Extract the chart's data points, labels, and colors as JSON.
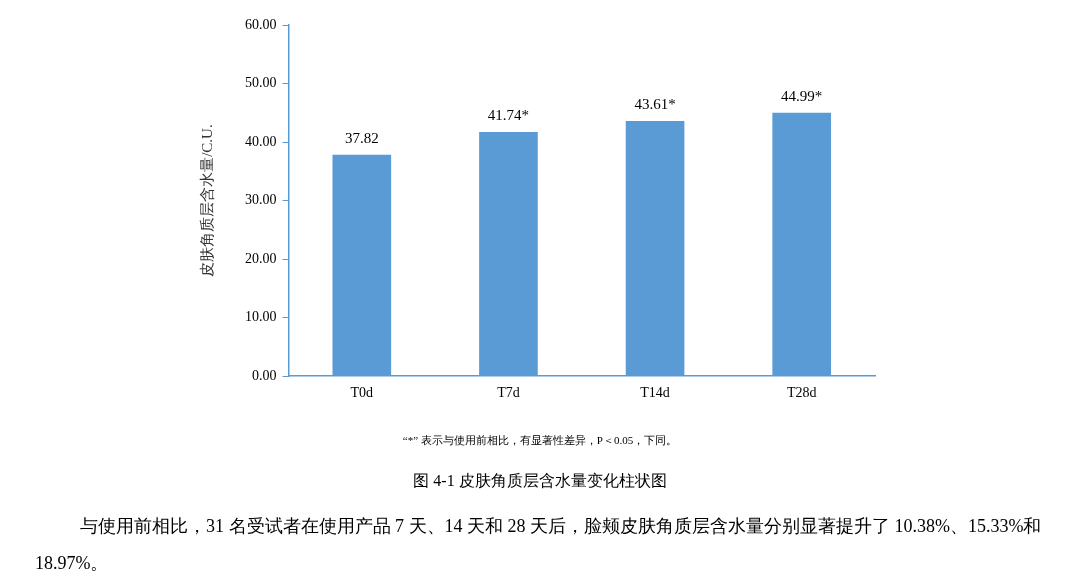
{
  "chart_data": {
    "type": "bar",
    "ylabel": "皮肤角质层含水量/C.U.",
    "categories": [
      "T0d",
      "T7d",
      "T14d",
      "T28d"
    ],
    "values": [
      37.82,
      41.74,
      43.61,
      44.99
    ],
    "value_labels": [
      "37.82",
      "41.74*",
      "43.61*",
      "44.99*"
    ],
    "color": "#5b9bd5",
    "ylim": [
      0,
      60
    ],
    "yticks": [
      {
        "value": 0,
        "label": "0.00"
      },
      {
        "value": 10,
        "label": "10.00"
      },
      {
        "value": 20,
        "label": "20.00"
      },
      {
        "value": 30,
        "label": "30.00"
      },
      {
        "value": 40,
        "label": "40.00"
      },
      {
        "value": 50,
        "label": "50.00"
      },
      {
        "value": 60,
        "label": "60.00"
      }
    ],
    "grid": false,
    "annotations": [
      "“*” 表示与使用前相比，有显著性差异，P＜0.05，下同。",
      "图 4-1 皮肤角质层含水量变化柱状图",
      "与使用前相比，31 名受试者在使用产品 7 天、14 天和 28 天后，脸颊皮肤角质层含水量分别显著提升了 10.38%、15.33%和 18.97%。"
    ]
  }
}
